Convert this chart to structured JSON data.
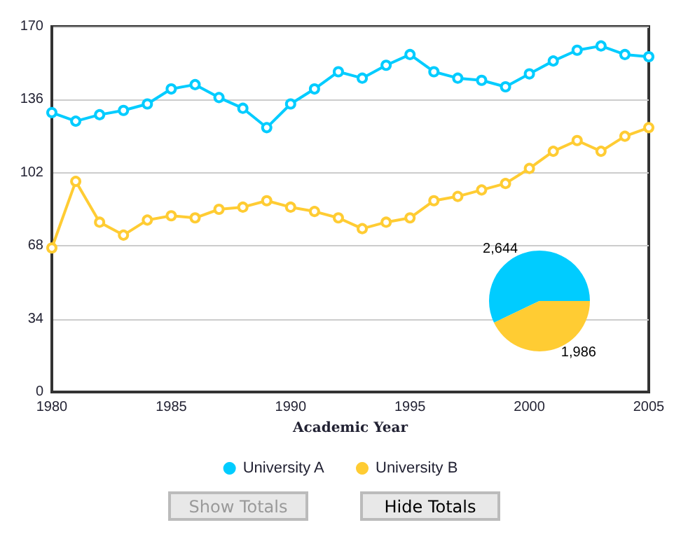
{
  "chart_data": [
    {
      "type": "line",
      "xlabel": "Academic Year",
      "x": [
        1980,
        1981,
        1982,
        1983,
        1984,
        1985,
        1986,
        1987,
        1988,
        1989,
        1990,
        1991,
        1992,
        1993,
        1994,
        1995,
        1996,
        1997,
        1998,
        1999,
        2000,
        2001,
        2002,
        2003,
        2004,
        2005
      ],
      "series": [
        {
          "name": "University A",
          "color": "#00ccff",
          "values": [
            130,
            126,
            129,
            131,
            134,
            141,
            143,
            137,
            132,
            123,
            134,
            141,
            149,
            146,
            152,
            157,
            149,
            146,
            145,
            142,
            148,
            154,
            159,
            161,
            157,
            156
          ]
        },
        {
          "name": "University B",
          "color": "#ffcc33",
          "values": [
            67,
            98,
            79,
            73,
            80,
            82,
            81,
            85,
            86,
            89,
            86,
            84,
            81,
            76,
            79,
            81,
            89,
            91,
            94,
            97,
            104,
            112,
            117,
            112,
            119,
            123
          ]
        }
      ],
      "xlim": [
        1980,
        2005
      ],
      "xticks": [
        1980,
        1985,
        1990,
        1995,
        2000,
        2005
      ],
      "ylim": [
        0,
        170
      ],
      "yticks": [
        0,
        34,
        68,
        102,
        136,
        170
      ],
      "grid": "y",
      "legend": "bottom",
      "marker": "circle",
      "line_style": "solid",
      "annotations": [
        "Show Totals",
        "Hide Totals"
      ]
    },
    {
      "type": "pie",
      "categories": [
        null,
        null
      ],
      "values": [
        2644,
        1986
      ],
      "colors": [
        "#00ccff",
        "#ffcc33"
      ],
      "value_labels": [
        "2,644",
        "1,986"
      ]
    }
  ]
}
